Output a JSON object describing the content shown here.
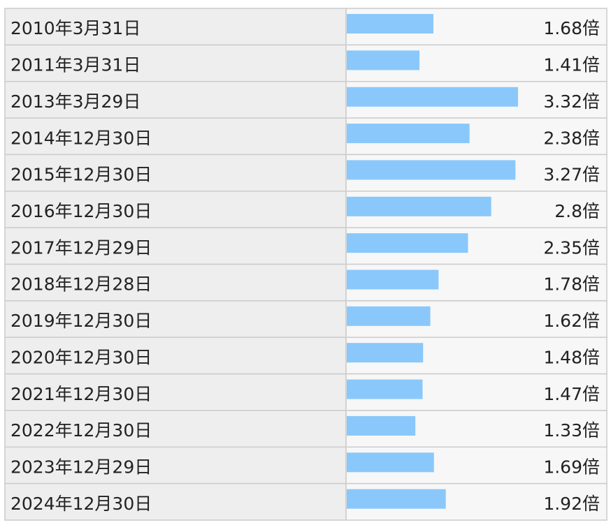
{
  "chart_data": {
    "type": "bar",
    "orientation": "horizontal",
    "color": "#8ac8fb",
    "categories": [
      "2010年3月31日",
      "2011年3月31日",
      "2013年3月29日",
      "2014年12月30日",
      "2015年12月30日",
      "2016年12月30日",
      "2017年12月29日",
      "2018年12月28日",
      "2019年12月30日",
      "2020年12月30日",
      "2021年12月30日",
      "2022年12月30日",
      "2023年12月29日",
      "2024年12月30日"
    ],
    "values": [
      1.68,
      1.41,
      3.32,
      2.38,
      3.27,
      2.8,
      2.35,
      1.78,
      1.62,
      1.48,
      1.47,
      1.33,
      1.69,
      1.92
    ],
    "value_labels": [
      "1.68倍",
      "1.41倍",
      "3.32倍",
      "2.38倍",
      "3.27倍",
      "2.8倍",
      "2.35倍",
      "1.78倍",
      "1.62倍",
      "1.48倍",
      "1.47倍",
      "1.33倍",
      "1.69倍",
      "1.92倍"
    ]
  }
}
